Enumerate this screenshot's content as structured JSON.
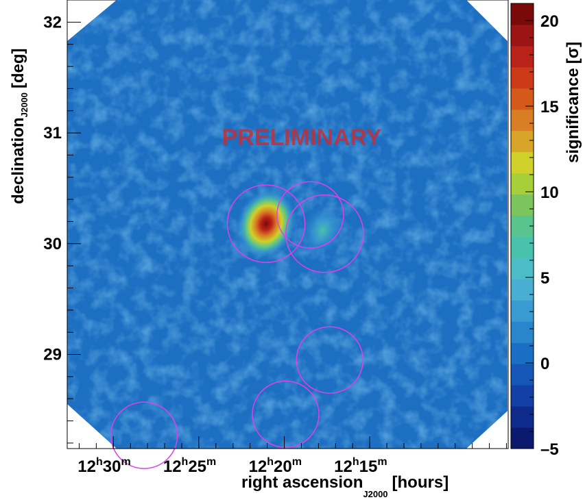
{
  "chart_data": {
    "type": "heatmap",
    "title": "",
    "watermark": "PRELIMINARY",
    "xlabel": {
      "main": "right ascension",
      "subscript": "J2000",
      "unit": "[hours]"
    },
    "ylabel": {
      "main": "declination",
      "subscript": "J2000",
      "unit": "[deg]"
    },
    "zlabel": {
      "main": "significance",
      "unit": "[σ]"
    },
    "x_axis": {
      "range_hours": [
        12.545,
        12.115
      ],
      "reversed": true,
      "ticks": [
        {
          "value": 12.5,
          "h": "12",
          "m": "30"
        },
        {
          "value": 12.4167,
          "h": "12",
          "m": "25"
        },
        {
          "value": 12.3333,
          "h": "12",
          "m": "20"
        },
        {
          "value": 12.25,
          "h": "12",
          "m": "15"
        }
      ],
      "h_symbol": "h",
      "m_symbol": "m"
    },
    "y_axis": {
      "range_deg": [
        28.15,
        32.2
      ],
      "ticks": [
        29,
        30,
        31,
        32
      ]
    },
    "z_axis": {
      "range": [
        -5,
        21
      ],
      "ticks": [
        -5,
        0,
        5,
        10,
        15,
        20
      ],
      "tick_labels": [
        "–5",
        "0",
        "5",
        "10",
        "15",
        "20"
      ],
      "palette": [
        "#0b1a6e",
        "#0e2a8a",
        "#1240a4",
        "#1556b6",
        "#1a6ec4",
        "#2a86cc",
        "#3a9bd3",
        "#4aaed3",
        "#4cbcc6",
        "#49c2ad",
        "#5ac48e",
        "#7cc45e",
        "#a7cf3a",
        "#cfd12a",
        "#d8a52a",
        "#d87e24",
        "#d45a1c",
        "#cc3a18",
        "#b92218",
        "#9c1414",
        "#7a0a0a"
      ]
    },
    "sources": [
      {
        "ra": 12.351,
        "dec": 30.18,
        "peak_sigma": 20,
        "radius_deg": 0.35
      },
      {
        "ra": 12.296,
        "dec": 30.12,
        "peak_sigma": 3,
        "radius_deg": 0.35
      }
    ],
    "circles": [
      {
        "ra": 12.351,
        "dec": 30.18,
        "radius_deg": 0.35
      },
      {
        "ra": 12.308,
        "dec": 30.26,
        "radius_deg": 0.3
      },
      {
        "ra": 12.294,
        "dec": 30.09,
        "radius_deg": 0.35
      },
      {
        "ra": 12.289,
        "dec": 28.95,
        "radius_deg": 0.3
      },
      {
        "ra": 12.332,
        "dec": 28.46,
        "radius_deg": 0.3
      },
      {
        "ra": 12.47,
        "dec": 28.27,
        "radius_deg": 0.3
      }
    ],
    "circle_color": "#e040e8",
    "background_level_sigma": 0,
    "grid": false,
    "legend": "colorbar-right"
  }
}
